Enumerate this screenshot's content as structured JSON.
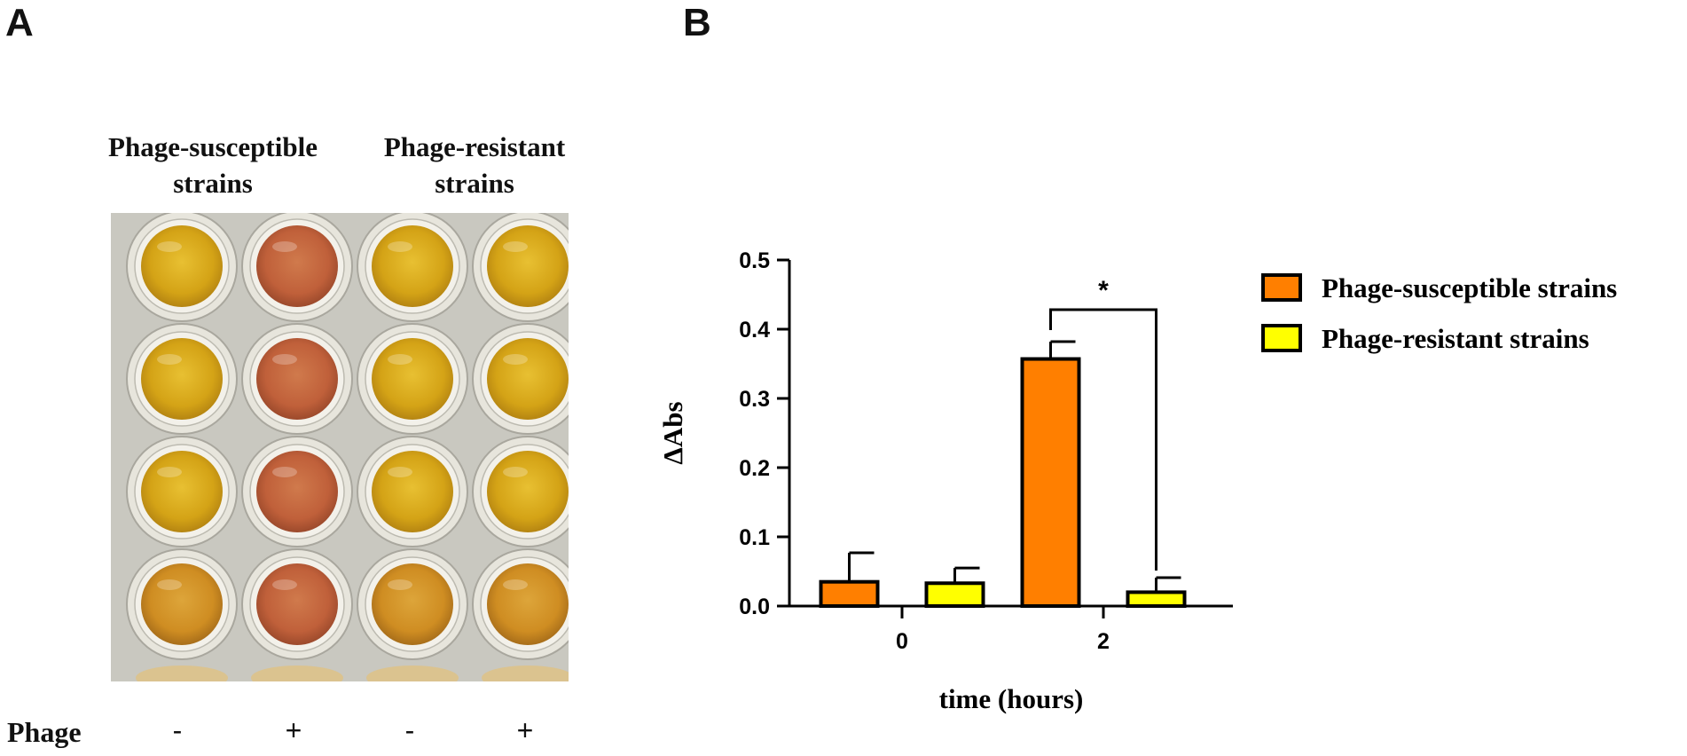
{
  "panel_a": {
    "letter": "A",
    "column_headers": [
      {
        "line1": "Phage-susceptible",
        "line2": "strains"
      },
      {
        "line1": "Phage-resistant",
        "line2": "strains"
      }
    ],
    "row_label": "Phage",
    "signs": [
      "-",
      "+",
      "-",
      "+"
    ],
    "well_colors": {
      "yellow": "#d9a414",
      "amber": "#d49322",
      "red_orange": "#c4643a",
      "plate_bg": "#c9c8c0"
    }
  },
  "panel_b": {
    "letter": "B",
    "significance": "*"
  },
  "chart_data": {
    "type": "bar",
    "title": "",
    "xlabel": "time (hours)",
    "ylabel": "ΔAbs",
    "categories": [
      "0",
      "2"
    ],
    "ylim": [
      0,
      0.5
    ],
    "yticks": [
      "0.0",
      "0.1",
      "0.2",
      "0.3",
      "0.4",
      "0.5"
    ],
    "series": [
      {
        "name": "Phage-susceptible strains",
        "color": "#ff7f00",
        "values": [
          0.035,
          0.357
        ],
        "errors": [
          0.042,
          0.025
        ]
      },
      {
        "name": "Phage-resistant strains",
        "color": "#ffff00",
        "values": [
          0.033,
          0.02
        ],
        "errors": [
          0.022,
          0.021
        ]
      }
    ],
    "legend": "right",
    "annotation": "*"
  }
}
